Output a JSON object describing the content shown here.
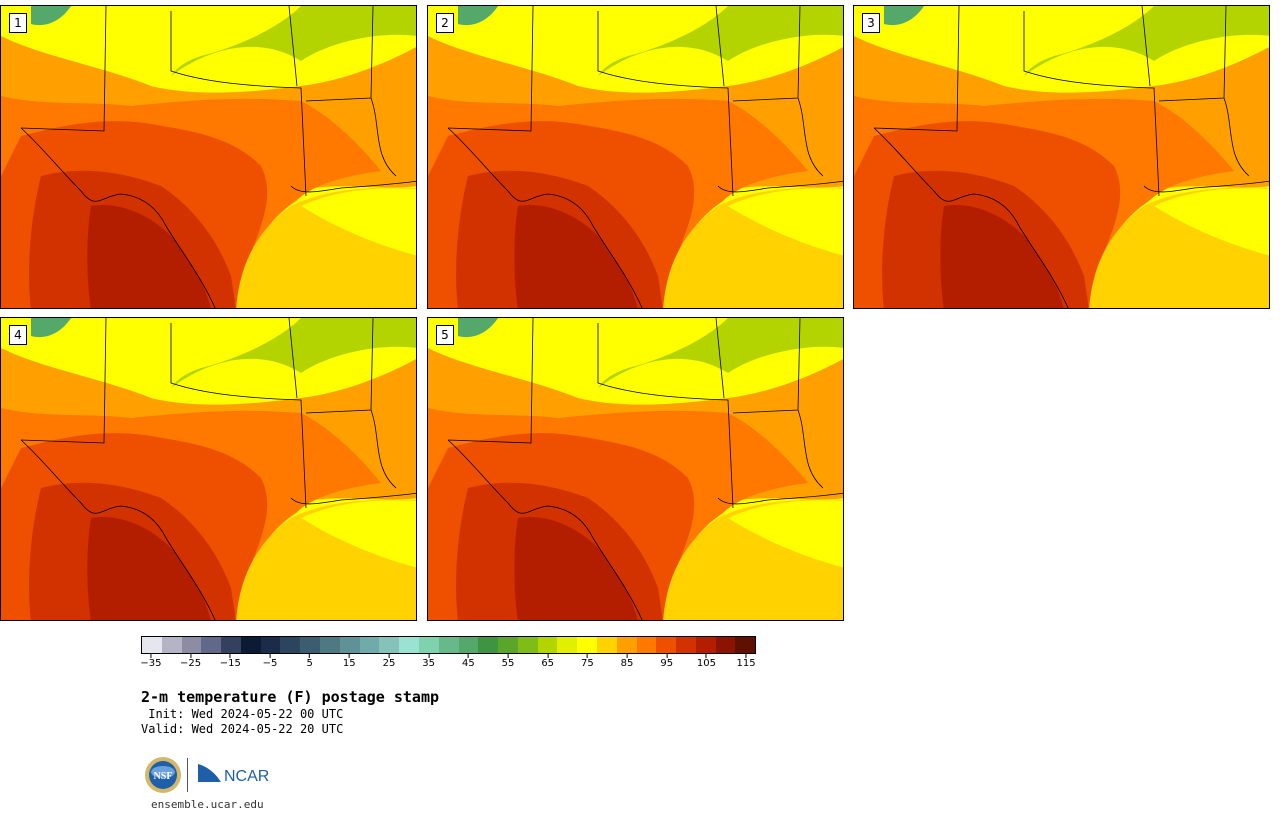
{
  "members": [
    {
      "label": "1"
    },
    {
      "label": "2"
    },
    {
      "label": "3"
    },
    {
      "label": "4"
    },
    {
      "label": "5"
    }
  ],
  "colorbar": {
    "colors": [
      "#e6e6ee",
      "#b4b4c4",
      "#8c8ca2",
      "#62688a",
      "#34405e",
      "#0c1a34",
      "#1a2c4a",
      "#2c445e",
      "#3c5c70",
      "#4e7882",
      "#5e9296",
      "#70aaaa",
      "#84c2ba",
      "#9ae2d2",
      "#7ed2ae",
      "#66ba8a",
      "#54a86a",
      "#3e9440",
      "#5aa62a",
      "#80bc18",
      "#b4d400",
      "#e0f000",
      "#ffff00",
      "#ffd200",
      "#ffa000",
      "#ff7800",
      "#ee5000",
      "#d23200",
      "#b41e00",
      "#8a1400",
      "#601000"
    ],
    "tick_labels": [
      "−35",
      "−25",
      "−15",
      "−5",
      "5",
      "15",
      "25",
      "35",
      "45",
      "55",
      "65",
      "75",
      "85",
      "95",
      "105",
      "115"
    ],
    "min": -40,
    "max": 120
  },
  "title": "2-m temperature (F) postage stamp",
  "init_label": " Init: Wed 2024-05-22 00 UTC",
  "valid_label": "Valid: Wed 2024-05-22 20 UTC",
  "logos": {
    "nsf": "NSF",
    "ncar": "NCAR"
  },
  "website": "ensemble.ucar.edu",
  "colors": {
    "gulf": "#ffd200",
    "gulf_far": "#ffff00",
    "north": "#ffff00",
    "green": "#b4d400",
    "mid": "#ffa000",
    "hot": "#ff7800",
    "hotter": "#ee5000",
    "hottest": "#d23200",
    "extreme": "#b41e00",
    "mountain": "#54a86a"
  }
}
